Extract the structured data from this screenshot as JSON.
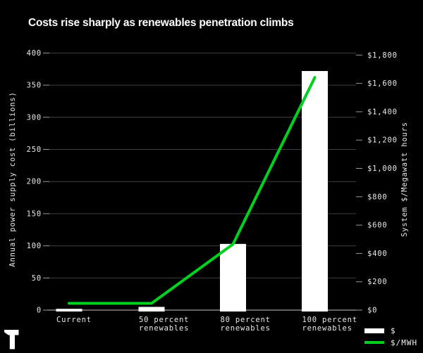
{
  "header": {
    "title": "Costs rise sharply as renewables penetration climbs"
  },
  "brand": {
    "logo_icon": "t-logo"
  },
  "legend": {
    "bar_label": "$",
    "line_label": "$/MWH"
  },
  "colors": {
    "background": "#000000",
    "bar": "#ffffff",
    "line": "#00d01e",
    "grid": "#3e3e3e",
    "axis_line": "#a0a0a0",
    "tick_mark": "#9a9a9a",
    "tick_text": "#e9e9e9",
    "title_text": "#ffffff"
  },
  "chart_data": {
    "type": "bar",
    "subtype": "bar+line dual axis",
    "title": "Costs rise sharply as renewables penetration climbs",
    "categories": [
      "Current",
      "50 percent renewables",
      "80 percent renewables",
      "100 percent renewables"
    ],
    "category_label_lines": [
      [
        "Current"
      ],
      [
        "50 percent",
        "renewables"
      ],
      [
        "80 percent",
        "renewables"
      ],
      [
        "100 percent",
        "renewables"
      ]
    ],
    "series": [
      {
        "name": "$",
        "type": "bar",
        "axis": "left",
        "color": "#ffffff",
        "values": [
          2,
          5,
          103,
          372
        ]
      },
      {
        "name": "$/MWH",
        "type": "line",
        "axis": "right",
        "color": "#00d01e",
        "values": [
          48,
          48,
          465,
          1642
        ]
      }
    ],
    "left_axis": {
      "label": "Annual power supply cost (billions)",
      "min": 0,
      "max": 400,
      "tick_step": 50,
      "ticks": [
        "0",
        "50",
        "100",
        "150",
        "200",
        "250",
        "300",
        "350",
        "400"
      ]
    },
    "right_axis": {
      "label": "System $/Megawatt hours",
      "min": 0,
      "max": 1800,
      "tick_step": 200,
      "ticks": [
        "$0",
        "$200",
        "$400",
        "$600",
        "$800",
        "$1,000",
        "$1,200",
        "$1,400",
        "$1,600",
        "$1,800"
      ]
    },
    "grid": "horizontal only",
    "legend_position": "bottom-right"
  }
}
